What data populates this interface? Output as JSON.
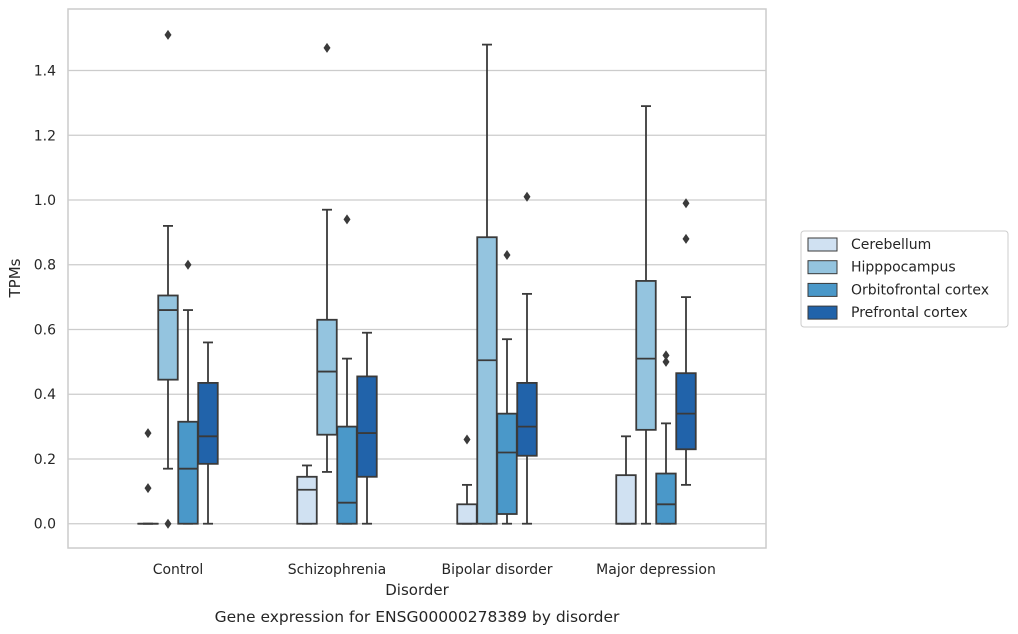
{
  "chart_data": {
    "type": "box",
    "title": "",
    "caption": "Gene expression for ENSG00000278389 by disorder",
    "xlabel": "Disorder",
    "ylabel": "TPMs",
    "ylim": [
      -0.075,
      1.59
    ],
    "yticks": [
      "0.0",
      "0.2",
      "0.4",
      "0.6",
      "0.8",
      "1.0",
      "1.2",
      "1.4"
    ],
    "grid": "horizontal",
    "legend_position": "right",
    "categories": [
      "Control",
      "Schizophrenia",
      "Bipolar disorder",
      "Major depression"
    ],
    "series": [
      {
        "name": "Cerebellum",
        "color": "#d0e1f2",
        "boxes": [
          {
            "min": 0.0,
            "q1": 0.0,
            "median": 0.0,
            "q3": 0.0,
            "max": 0.0,
            "outliers": [
              0.11,
              0.28
            ]
          },
          {
            "min": 0.0,
            "q1": 0.0,
            "median": 0.105,
            "q3": 0.145,
            "max": 0.18,
            "outliers": []
          },
          {
            "min": 0.0,
            "q1": 0.0,
            "median": 0.0,
            "q3": 0.06,
            "max": 0.12,
            "outliers": [
              0.26
            ]
          },
          {
            "min": 0.0,
            "q1": 0.0,
            "median": 0.0,
            "q3": 0.15,
            "max": 0.27,
            "outliers": []
          }
        ]
      },
      {
        "name": "Hipppocampus",
        "color": "#94c4df",
        "boxes": [
          {
            "min": 0.17,
            "q1": 0.445,
            "median": 0.66,
            "q3": 0.705,
            "max": 0.92,
            "outliers": [
              1.51,
              0.0
            ]
          },
          {
            "min": 0.16,
            "q1": 0.275,
            "median": 0.47,
            "q3": 0.63,
            "max": 0.97,
            "outliers": [
              1.47
            ]
          },
          {
            "min": 0.0,
            "q1": 0.0,
            "median": 0.505,
            "q3": 0.885,
            "max": 1.48,
            "outliers": []
          },
          {
            "min": 0.0,
            "q1": 0.29,
            "median": 0.51,
            "q3": 0.75,
            "max": 1.29,
            "outliers": []
          }
        ]
      },
      {
        "name": "Orbitofrontal cortex",
        "color": "#4a98c9",
        "boxes": [
          {
            "min": 0.0,
            "q1": 0.0,
            "median": 0.17,
            "q3": 0.315,
            "max": 0.66,
            "outliers": [
              0.8
            ]
          },
          {
            "min": 0.0,
            "q1": 0.0,
            "median": 0.065,
            "q3": 0.3,
            "max": 0.51,
            "outliers": [
              0.94
            ]
          },
          {
            "min": 0.0,
            "q1": 0.03,
            "median": 0.22,
            "q3": 0.34,
            "max": 0.57,
            "outliers": [
              0.83
            ]
          },
          {
            "min": 0.0,
            "q1": 0.0,
            "median": 0.06,
            "q3": 0.155,
            "max": 0.31,
            "outliers": [
              0.5,
              0.52
            ]
          }
        ]
      },
      {
        "name": "Prefrontal cortex",
        "color": "#2163aa",
        "boxes": [
          {
            "min": 0.0,
            "q1": 0.185,
            "median": 0.27,
            "q3": 0.435,
            "max": 0.56,
            "outliers": []
          },
          {
            "min": 0.0,
            "q1": 0.145,
            "median": 0.28,
            "q3": 0.455,
            "max": 0.59,
            "outliers": []
          },
          {
            "min": 0.0,
            "q1": 0.21,
            "median": 0.3,
            "q3": 0.435,
            "max": 0.71,
            "outliers": [
              1.01
            ]
          },
          {
            "min": 0.12,
            "q1": 0.23,
            "median": 0.34,
            "q3": 0.465,
            "max": 0.7,
            "outliers": [
              0.88,
              0.99
            ]
          }
        ]
      }
    ]
  }
}
